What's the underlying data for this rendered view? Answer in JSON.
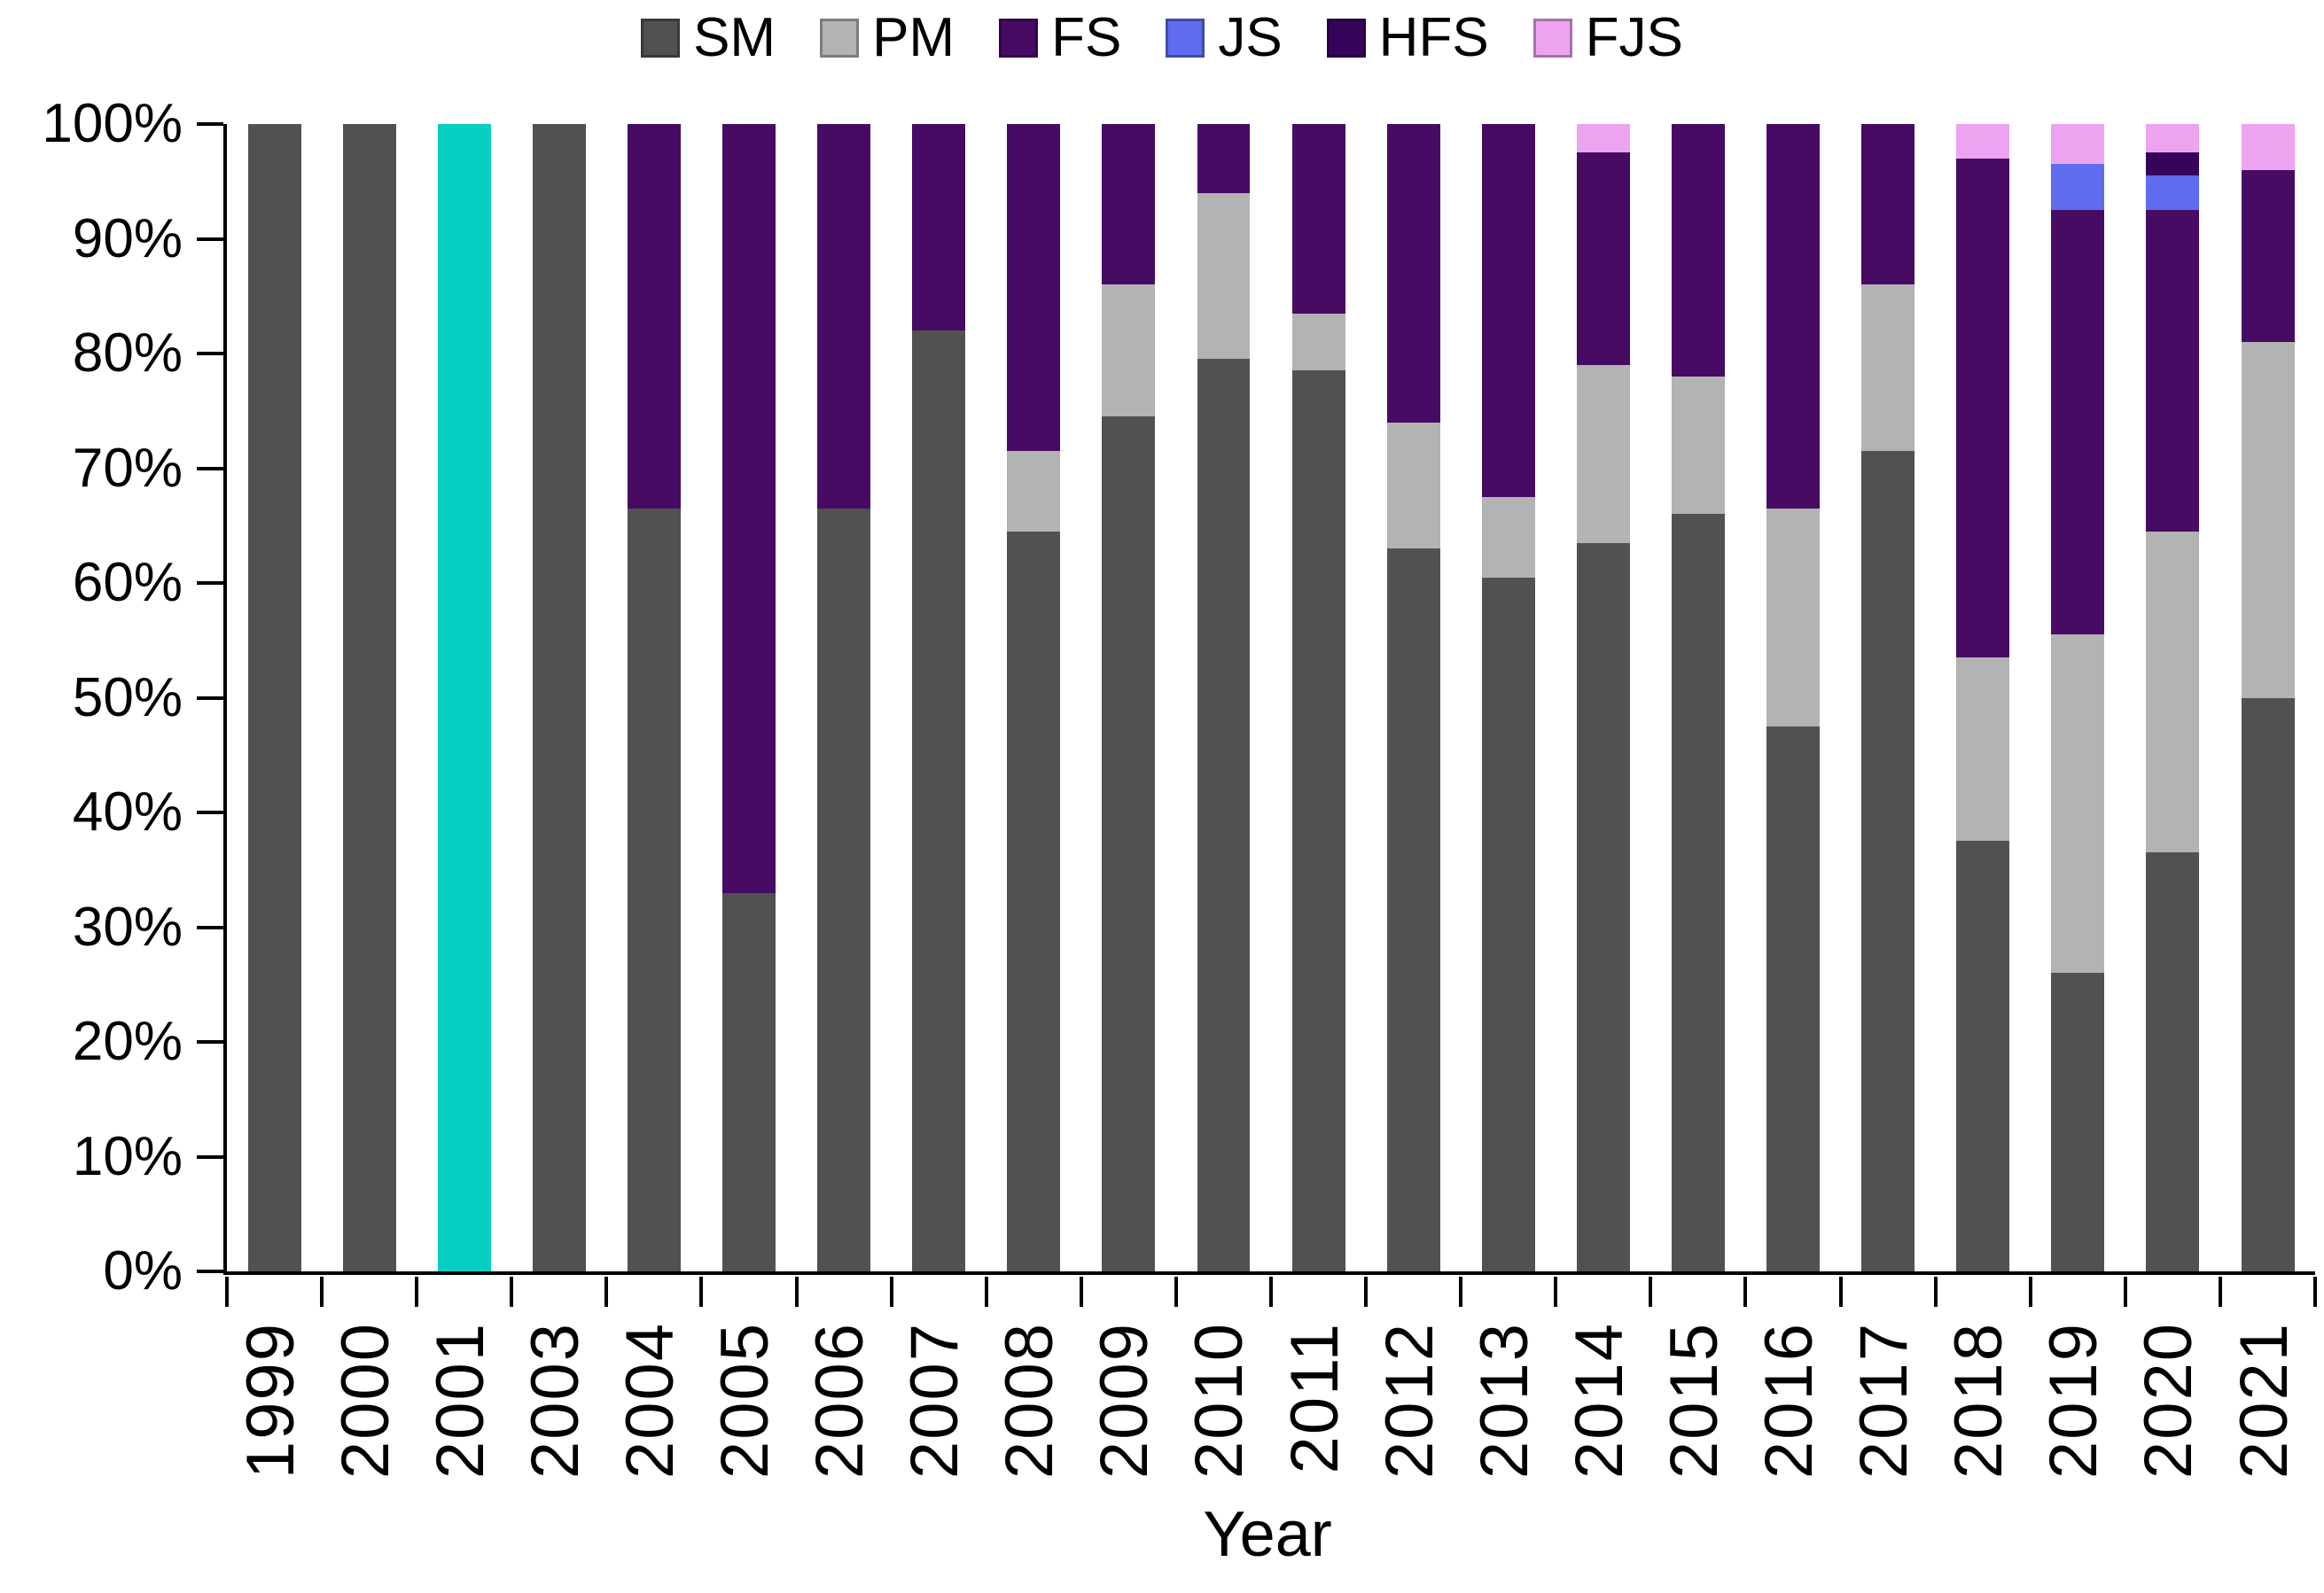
{
  "xaxis": {
    "title": "Year"
  },
  "yaxis": {
    "tick_labels": [
      "0%",
      "10%",
      "20%",
      "30%",
      "40%",
      "50%",
      "60%",
      "70%",
      "80%",
      "90%",
      "100%"
    ]
  },
  "legend": {
    "items": [
      "SM",
      "PM",
      "FS",
      "JS",
      "HFS",
      "FJS"
    ]
  },
  "colors": {
    "SM": "#515151",
    "PM": "#b3b3b3",
    "FS": "#470b63",
    "JS": "#5e6cef",
    "HFS": "#37045b",
    "FJS": "#eca4f1",
    "highlight_teal": "#05cfc2",
    "axis": "#000000"
  },
  "chart_data": {
    "type": "bar",
    "subtype": "stacked-100-percent",
    "title": "",
    "xlabel": "Year",
    "ylabel": "",
    "ylim": [
      0,
      100
    ],
    "yticks": [
      0,
      10,
      20,
      30,
      40,
      50,
      60,
      70,
      80,
      90,
      100
    ],
    "ytick_format": "percent",
    "grid": false,
    "legend_position": "top-center",
    "categories": [
      "1999",
      "2000",
      "2001",
      "2003",
      "2004",
      "2005",
      "2006",
      "2007",
      "2008",
      "2009",
      "2010",
      "2011",
      "2012",
      "2013",
      "2014",
      "2015",
      "2016",
      "2017",
      "2018",
      "2019",
      "2020",
      "2021"
    ],
    "series": [
      {
        "name": "SM",
        "color": "#515151",
        "values": [
          100,
          100,
          100,
          100,
          66.5,
          33,
          66.5,
          82,
          64.5,
          74.5,
          79.5,
          78.5,
          63,
          60.5,
          63.5,
          66,
          47.5,
          71.5,
          37.5,
          26,
          36.5,
          50
        ]
      },
      {
        "name": "PM",
        "color": "#b3b3b3",
        "values": [
          0,
          0,
          0,
          0,
          0,
          0,
          0,
          0,
          7,
          11.5,
          14.5,
          5,
          11,
          7,
          15.5,
          12,
          19,
          14.5,
          16,
          29.5,
          28,
          31
        ]
      },
      {
        "name": "FS",
        "color": "#470b63",
        "values": [
          0,
          0,
          0,
          0,
          33.5,
          67,
          33.5,
          18,
          28.5,
          14,
          6,
          16.5,
          26,
          32.5,
          18.5,
          22,
          33.5,
          14,
          43.5,
          37,
          28,
          15
        ]
      },
      {
        "name": "JS",
        "color": "#5e6cef",
        "values": [
          0,
          0,
          0,
          0,
          0,
          0,
          0,
          0,
          0,
          0,
          0,
          0,
          0,
          0,
          0,
          0,
          0,
          0,
          0,
          4,
          3,
          0
        ]
      },
      {
        "name": "HFS",
        "color": "#37045b",
        "values": [
          0,
          0,
          0,
          0,
          0,
          0,
          0,
          0,
          0,
          0,
          0,
          0,
          0,
          0,
          0,
          0,
          0,
          0,
          0,
          0,
          2,
          0
        ]
      },
      {
        "name": "FJS",
        "color": "#eca4f1",
        "values": [
          0,
          0,
          0,
          0,
          0,
          0,
          0,
          0,
          0,
          0,
          0,
          0,
          0,
          0,
          2.5,
          0,
          0,
          0,
          3,
          3.5,
          2.5,
          4
        ]
      }
    ],
    "highlight_bar": {
      "category": "2001",
      "color": "#05cfc2"
    }
  }
}
